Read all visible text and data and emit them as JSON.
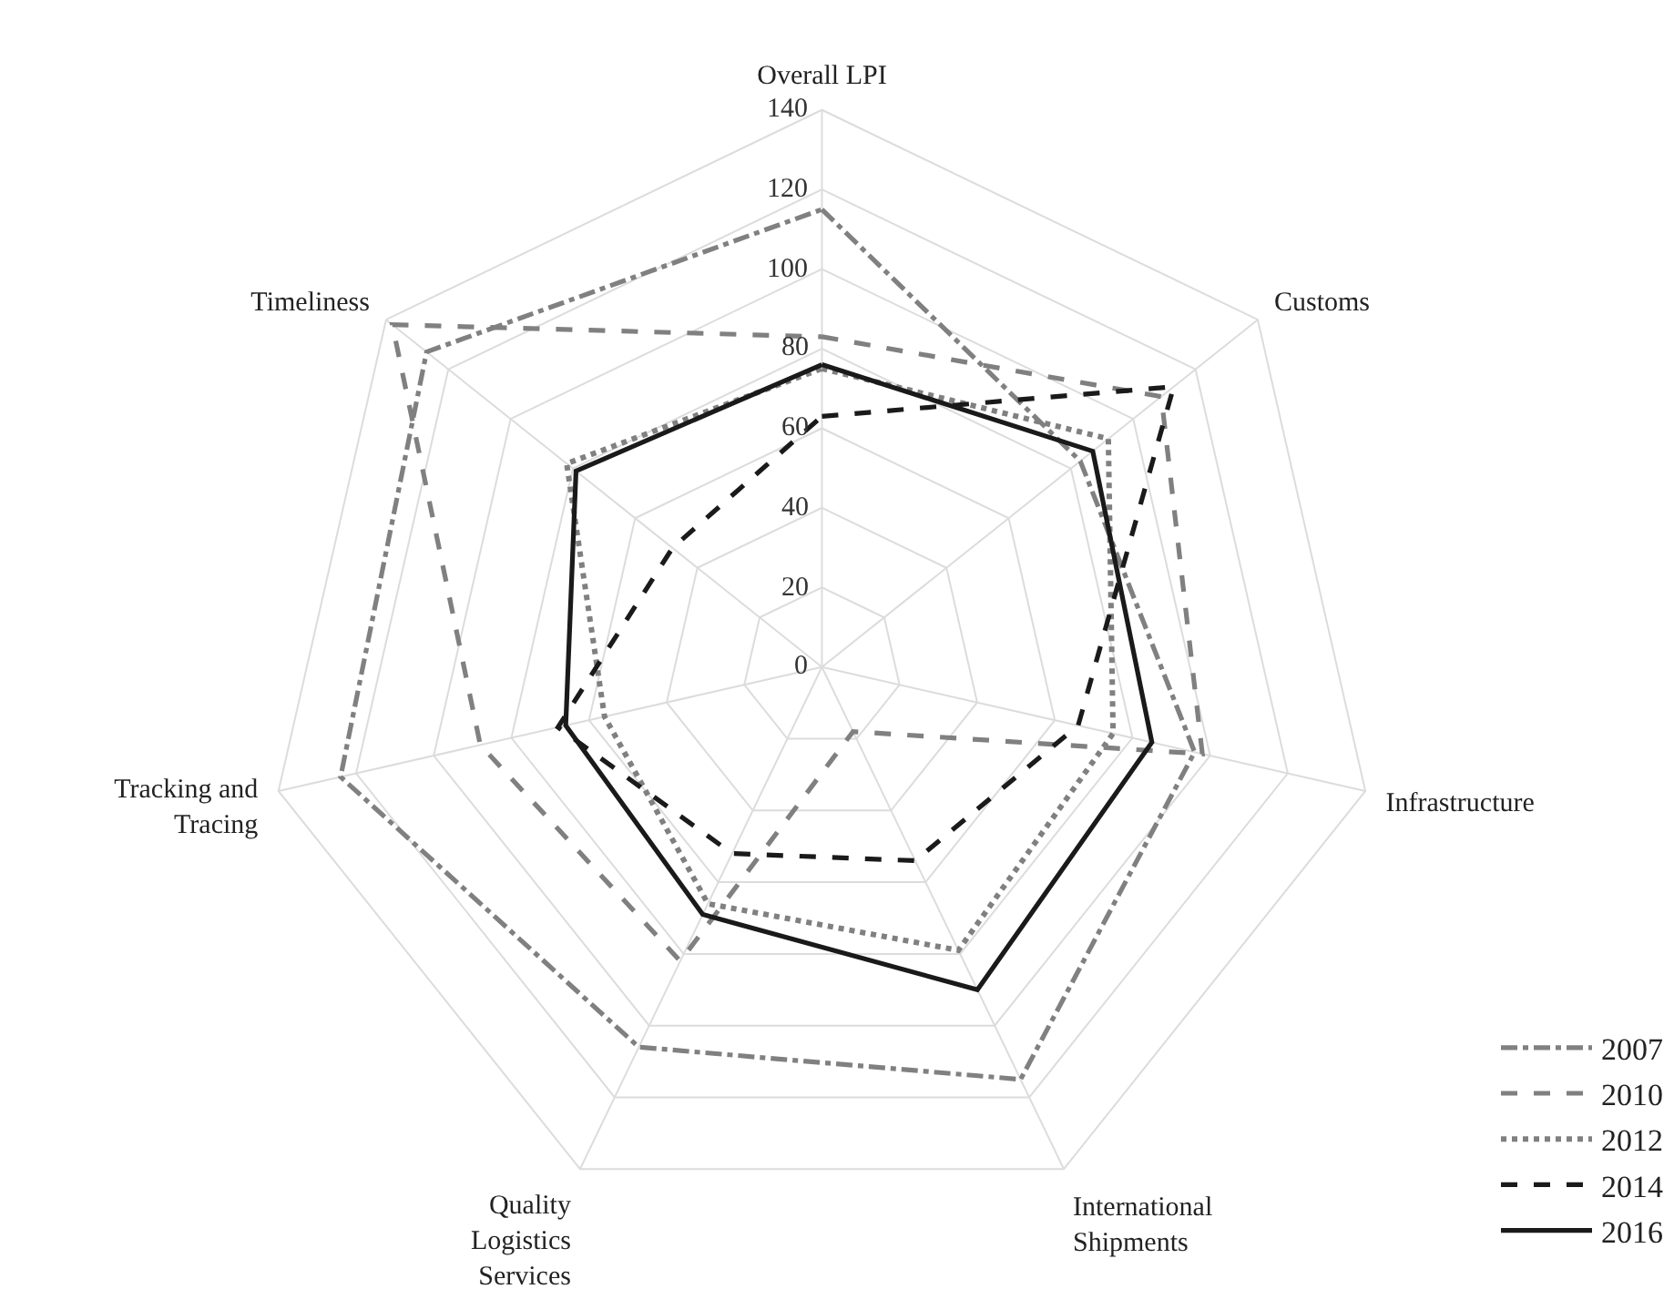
{
  "chart_data": {
    "type": "radar",
    "categories": [
      "Overall LPI",
      "Customs",
      "Infrastructure",
      "International Shipments",
      "Quality Logistics Services",
      "Tracking and Tracing",
      "Timeliness"
    ],
    "ylim": [
      0,
      140
    ],
    "yticks": [
      0,
      20,
      40,
      60,
      80,
      100,
      120,
      140
    ],
    "grid": true,
    "legend": "bottom right",
    "marker": "none",
    "series": [
      {
        "name": "2007",
        "color": "#808080",
        "line_style": "dashdot",
        "values": [
          115,
          83,
          96,
          115,
          106,
          124,
          127
        ]
      },
      {
        "name": "2010",
        "color": "#808080",
        "line_style": "dashed",
        "values": [
          83,
          109,
          98,
          18,
          82,
          88,
          138
        ]
      },
      {
        "name": "2012",
        "color": "#808080",
        "line_style": "dotted",
        "values": [
          75,
          92,
          75,
          79,
          66,
          56,
          82
        ]
      },
      {
        "name": "2014",
        "color": "#1a1a1a",
        "line_style": "dashed",
        "values": [
          63,
          113,
          66,
          54,
          52,
          68,
          48
        ]
      },
      {
        "name": "2016",
        "color": "#1a1a1a",
        "line_style": "solid",
        "values": [
          76,
          87,
          85,
          90,
          69,
          66,
          79
        ]
      }
    ]
  }
}
